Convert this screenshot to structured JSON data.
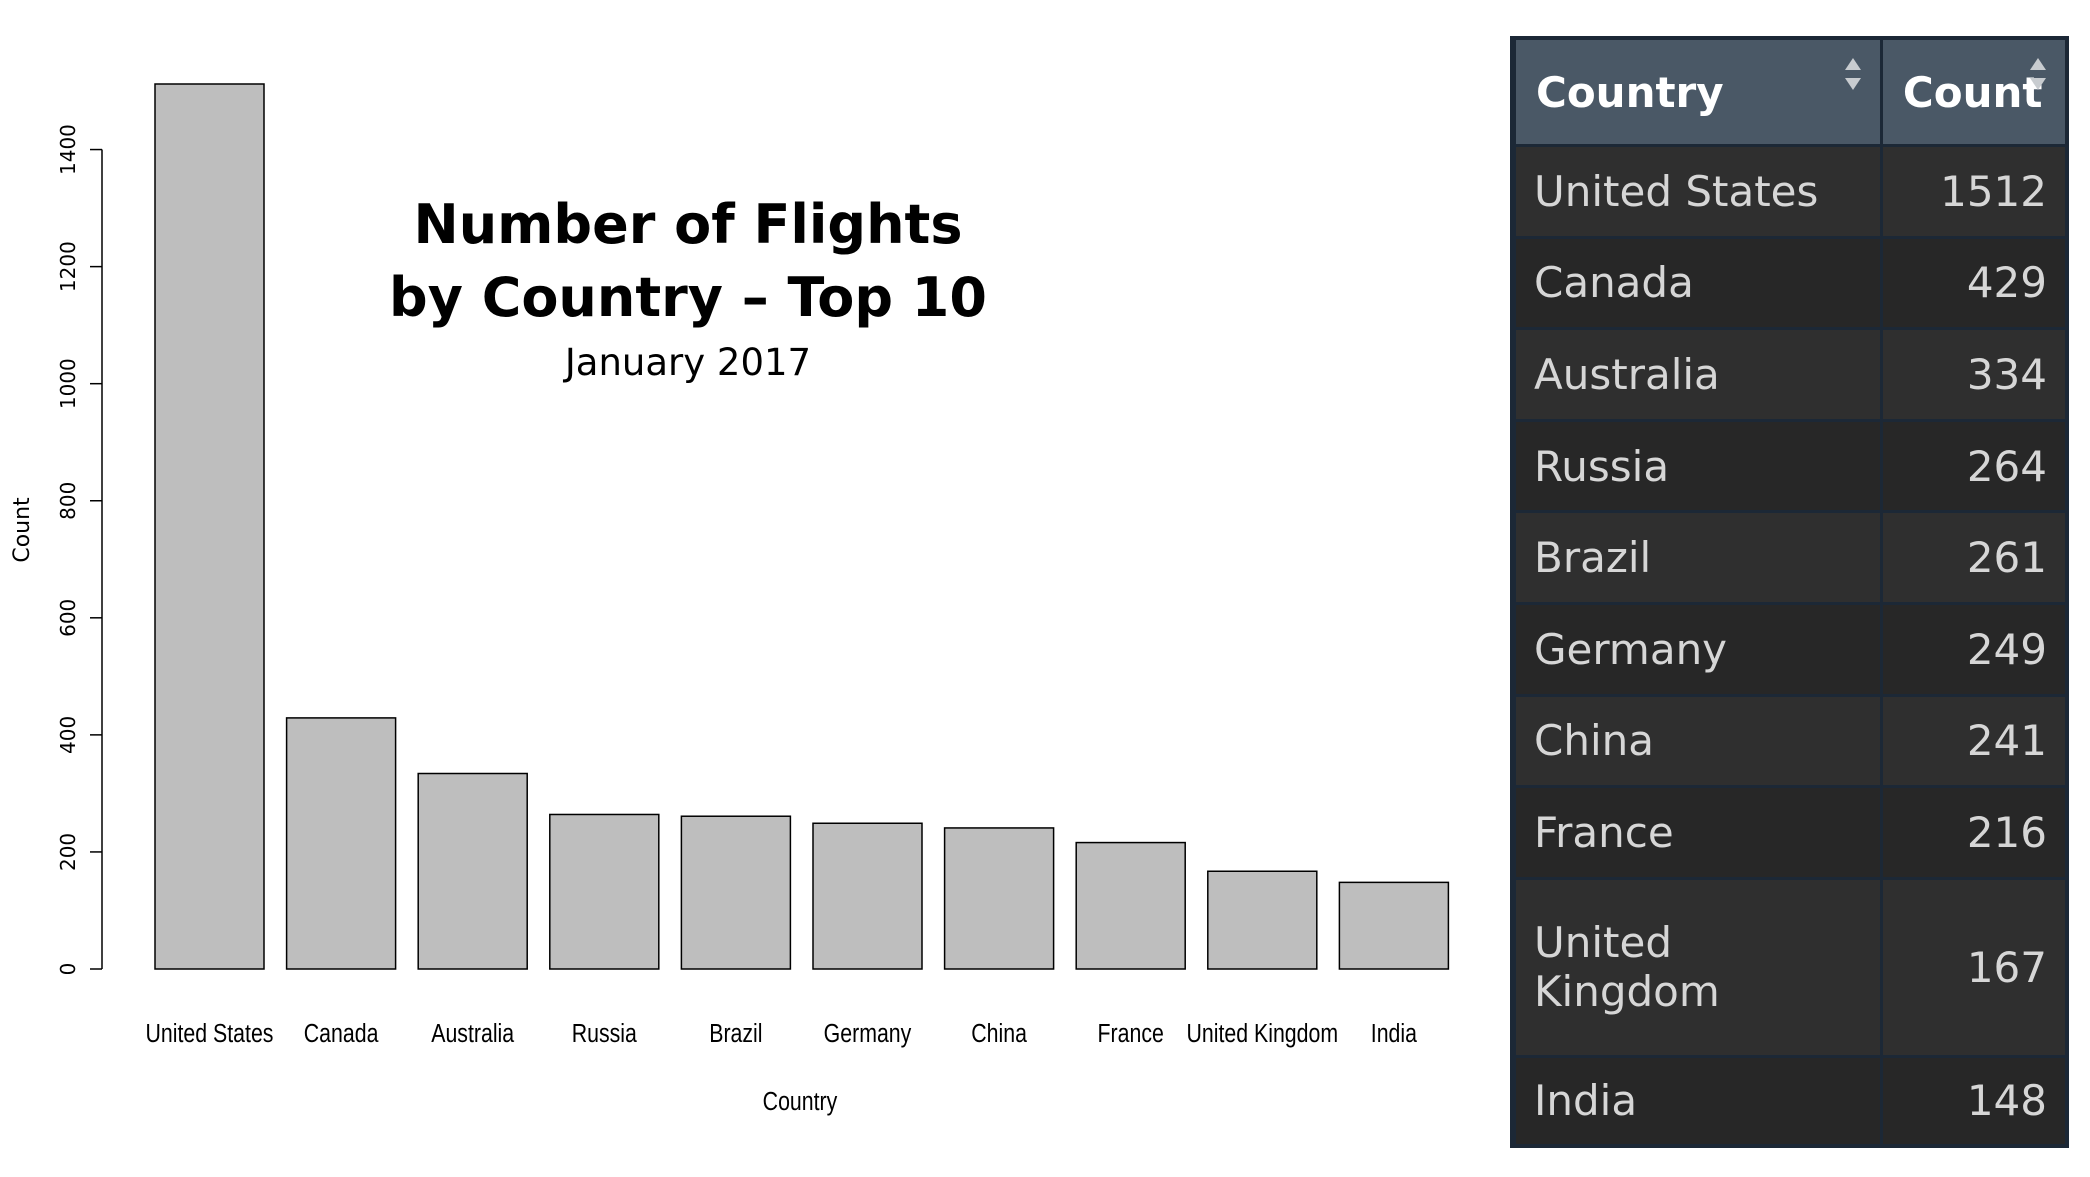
{
  "chart_data": {
    "type": "bar",
    "title": "Number of Flights",
    "title_line2": "by Country – Top 10",
    "subtitle": "January 2017",
    "xlabel": "Country",
    "ylabel": "Count",
    "ylim": [
      0,
      1512
    ],
    "yticks": [
      0,
      200,
      400,
      600,
      800,
      1000,
      1200,
      1400
    ],
    "categories": [
      "United States",
      "Canada",
      "Australia",
      "Russia",
      "Brazil",
      "Germany",
      "China",
      "France",
      "United Kingdom",
      "India"
    ],
    "values": [
      1512,
      429,
      334,
      264,
      261,
      249,
      241,
      216,
      167,
      148
    ],
    "bar_color": "#bebebe",
    "bar_border_color": "#000000",
    "grid": false
  },
  "table": {
    "headers": [
      "Country",
      "Count"
    ],
    "rows": [
      [
        "United States",
        "1512"
      ],
      [
        "Canada",
        "429"
      ],
      [
        "Australia",
        "334"
      ],
      [
        "Russia",
        "264"
      ],
      [
        "Brazil",
        "261"
      ],
      [
        "Germany",
        "249"
      ],
      [
        "China",
        "241"
      ],
      [
        "France",
        "216"
      ],
      [
        "United Kingdom",
        "167"
      ],
      [
        "India",
        "148"
      ]
    ],
    "header_bg": "#4a5866",
    "row_bg_odd": "#2f2f2f",
    "row_bg_even": "#272727",
    "text_color": "#d6d6d6",
    "sort_icon": "sort-arrows-icon"
  }
}
